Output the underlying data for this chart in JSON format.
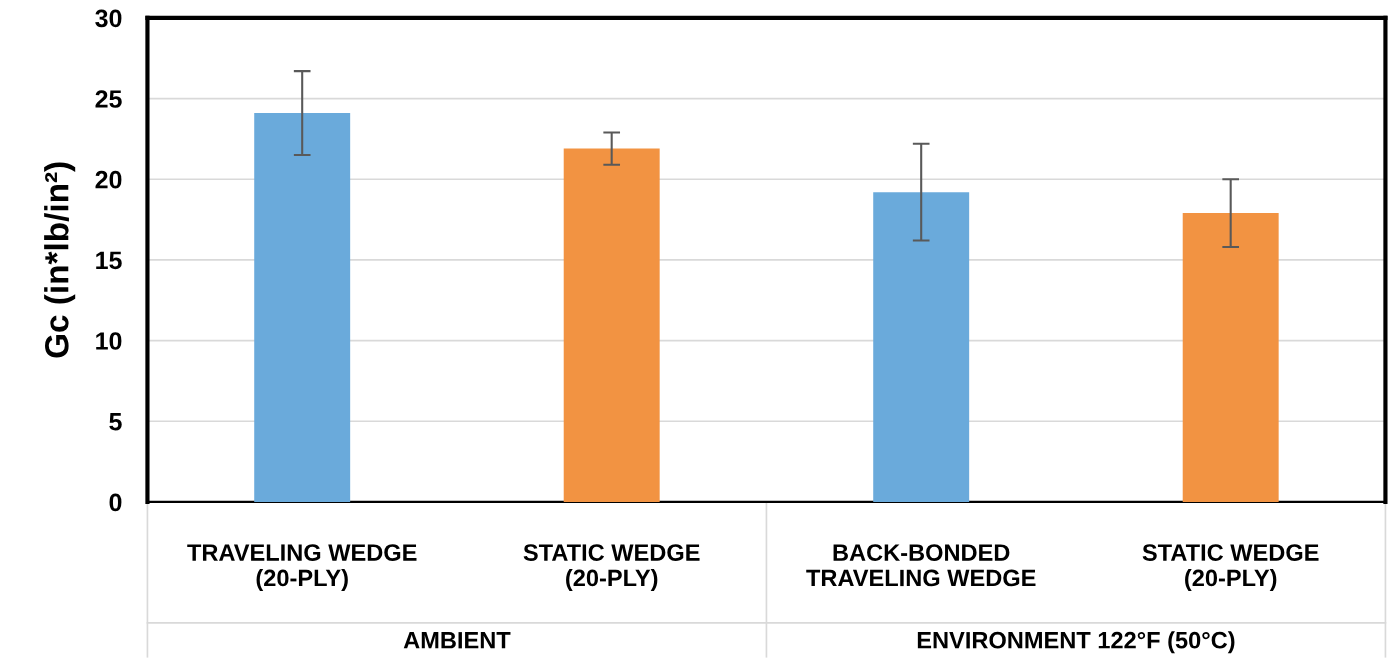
{
  "chart_data": {
    "type": "bar",
    "ylabel": "Gc (in*lb/in²)",
    "categories": [
      "TRAVELING WEDGE\n(20-PLY)",
      "STATIC WEDGE\n(20-PLY)",
      "BACK-BONDED\nTRAVELING WEDGE",
      "STATIC WEDGE\n(20-PLY)"
    ],
    "values": [
      24.1,
      21.9,
      19.2,
      17.9
    ],
    "colors": [
      "#6aaadb",
      "#f29342",
      "#6aaadb",
      "#f29342"
    ],
    "errors": [
      2.6,
      1.0,
      3.0,
      2.1
    ],
    "ylim": [
      0,
      30
    ],
    "yticks": [
      0,
      5,
      10,
      15,
      20,
      25,
      30
    ],
    "grid": "y",
    "annotations": [
      "AMBIENT",
      "ENVIRONMENT 122°F (50°C)"
    ]
  }
}
